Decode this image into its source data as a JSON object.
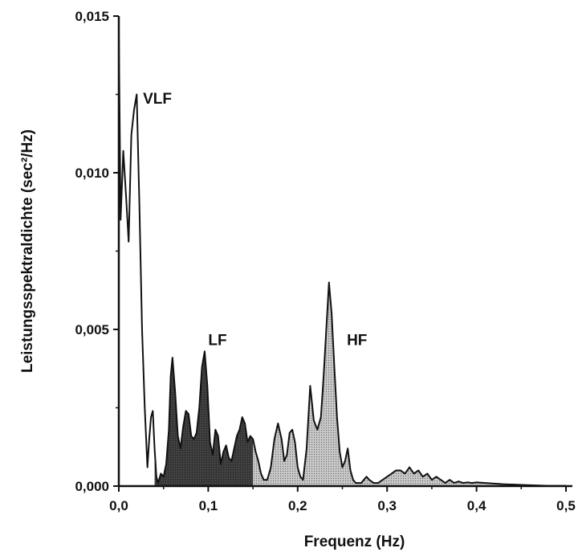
{
  "chart_data": {
    "type": "area",
    "xlabel": "Frequenz (Hz)",
    "ylabel": "Leistungsspektraldichte (sec²/Hz)",
    "xlim": [
      0,
      0.5
    ],
    "ylim": [
      0,
      0.015
    ],
    "x_ticks": [
      {
        "value": 0.0,
        "label": "0,0"
      },
      {
        "value": 0.1,
        "label": "0,1"
      },
      {
        "value": 0.2,
        "label": "0,2"
      },
      {
        "value": 0.3,
        "label": "0,3"
      },
      {
        "value": 0.4,
        "label": "0,4"
      },
      {
        "value": 0.5,
        "label": "0,5"
      }
    ],
    "y_ticks": [
      {
        "value": 0.0,
        "label": "0,000"
      },
      {
        "value": 0.005,
        "label": "0,005"
      },
      {
        "value": 0.01,
        "label": "0,010"
      },
      {
        "value": 0.015,
        "label": "0,015"
      }
    ],
    "grid": false,
    "bands": [
      {
        "name": "VLF",
        "range": [
          0.0,
          0.04
        ],
        "fill": "#ffffff",
        "label_at": [
          0.027,
          0.0122
        ]
      },
      {
        "name": "LF",
        "range": [
          0.04,
          0.15
        ],
        "fill": "#333333",
        "label_at": [
          0.1,
          0.0045
        ]
      },
      {
        "name": "HF",
        "range": [
          0.15,
          0.5
        ],
        "fill": "#c8c8c8",
        "label_at": [
          0.255,
          0.0045
        ]
      }
    ],
    "series": [
      {
        "x": [
          0.0,
          0.002,
          0.005,
          0.008,
          0.011,
          0.014,
          0.017,
          0.02,
          0.023,
          0.026,
          0.029,
          0.032,
          0.034,
          0.036,
          0.038,
          0.04,
          0.042,
          0.044,
          0.047,
          0.05,
          0.053,
          0.056,
          0.058,
          0.06,
          0.063,
          0.066,
          0.069,
          0.072,
          0.075,
          0.078,
          0.081,
          0.084,
          0.087,
          0.09,
          0.093,
          0.096,
          0.099,
          0.102,
          0.105,
          0.108,
          0.111,
          0.114,
          0.117,
          0.12,
          0.123,
          0.126,
          0.129,
          0.132,
          0.135,
          0.138,
          0.141,
          0.144,
          0.147,
          0.15,
          0.153,
          0.156,
          0.159,
          0.162,
          0.166,
          0.17,
          0.174,
          0.178,
          0.182,
          0.185,
          0.188,
          0.191,
          0.194,
          0.197,
          0.2,
          0.203,
          0.206,
          0.21,
          0.214,
          0.218,
          0.222,
          0.226,
          0.229,
          0.232,
          0.235,
          0.238,
          0.241,
          0.244,
          0.247,
          0.25,
          0.253,
          0.256,
          0.259,
          0.262,
          0.265,
          0.268,
          0.271,
          0.274,
          0.277,
          0.28,
          0.285,
          0.29,
          0.295,
          0.3,
          0.305,
          0.31,
          0.315,
          0.32,
          0.325,
          0.33,
          0.335,
          0.34,
          0.345,
          0.35,
          0.355,
          0.36,
          0.365,
          0.37,
          0.375,
          0.38,
          0.385,
          0.39,
          0.395,
          0.4,
          0.41,
          0.42,
          0.43,
          0.44,
          0.45,
          0.46,
          0.47,
          0.48,
          0.49,
          0.5
        ],
        "y": [
          0.0145,
          0.0085,
          0.0107,
          0.0093,
          0.0078,
          0.0112,
          0.012,
          0.0125,
          0.009,
          0.005,
          0.0025,
          0.0006,
          0.0015,
          0.0022,
          0.0024,
          0.0012,
          0.0003,
          0.0001,
          0.0004,
          0.0003,
          0.0007,
          0.0018,
          0.0035,
          0.0041,
          0.003,
          0.0016,
          0.0012,
          0.0019,
          0.0024,
          0.0023,
          0.0016,
          0.0015,
          0.0017,
          0.0025,
          0.0038,
          0.0043,
          0.0032,
          0.0014,
          0.001,
          0.0018,
          0.0016,
          0.0007,
          0.0011,
          0.0013,
          0.0009,
          0.0008,
          0.0012,
          0.0016,
          0.0018,
          0.0022,
          0.002,
          0.0014,
          0.0016,
          0.0015,
          0.0011,
          0.0008,
          0.0004,
          0.0002,
          0.0002,
          0.0006,
          0.0015,
          0.002,
          0.0015,
          0.0008,
          0.001,
          0.0017,
          0.0018,
          0.0014,
          0.0006,
          0.0003,
          0.0002,
          0.0012,
          0.0032,
          0.0021,
          0.0018,
          0.0022,
          0.0035,
          0.005,
          0.0065,
          0.0055,
          0.0038,
          0.0022,
          0.0011,
          0.0006,
          0.0008,
          0.0012,
          0.0005,
          0.0002,
          0.0001,
          0.0001,
          0.0001,
          0.0002,
          0.0003,
          0.0002,
          0.0001,
          0.0001,
          0.0002,
          0.0003,
          0.0004,
          0.0005,
          0.0005,
          0.0004,
          0.0006,
          0.0004,
          0.0005,
          0.0003,
          0.0004,
          0.0002,
          0.0003,
          0.0002,
          0.0001,
          0.0002,
          0.0001,
          0.00015,
          0.0001,
          0.00012,
          0.0001,
          0.00012,
          0.0001,
          8e-05,
          6e-05,
          5e-05,
          4e-05,
          3e-05,
          2e-05,
          1e-05,
          1e-05,
          1e-05
        ]
      }
    ]
  }
}
